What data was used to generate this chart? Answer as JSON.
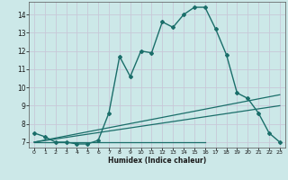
{
  "title": "",
  "xlabel": "Humidex (Indice chaleur)",
  "bg_color": "#cce8e8",
  "grid_color": "#c8c8d8",
  "line_color": "#1a6e6a",
  "xlim": [
    -0.5,
    23.5
  ],
  "ylim": [
    6.7,
    14.7
  ],
  "xticks": [
    0,
    1,
    2,
    3,
    4,
    5,
    6,
    7,
    8,
    9,
    10,
    11,
    12,
    13,
    14,
    15,
    16,
    17,
    18,
    19,
    20,
    21,
    22,
    23
  ],
  "yticks": [
    7,
    8,
    9,
    10,
    11,
    12,
    13,
    14
  ],
  "main_curve_x": [
    0,
    1,
    2,
    3,
    4,
    5,
    6,
    7,
    8,
    9,
    10,
    11,
    12,
    13,
    14,
    15,
    16,
    17,
    18,
    19,
    20,
    21,
    22,
    23
  ],
  "main_curve_y": [
    7.5,
    7.3,
    7.0,
    7.0,
    6.9,
    6.9,
    7.1,
    8.6,
    11.7,
    10.6,
    12.0,
    11.9,
    13.6,
    13.3,
    14.0,
    14.4,
    14.4,
    13.2,
    11.8,
    9.7,
    9.4,
    8.6,
    7.5,
    7.0
  ],
  "line2_x": [
    0,
    23
  ],
  "line2_y": [
    7.0,
    9.6
  ],
  "line3_x": [
    0,
    23
  ],
  "line3_y": [
    7.0,
    9.0
  ],
  "line4_x": [
    0,
    16
  ],
  "line4_y": [
    7.0,
    7.0
  ]
}
